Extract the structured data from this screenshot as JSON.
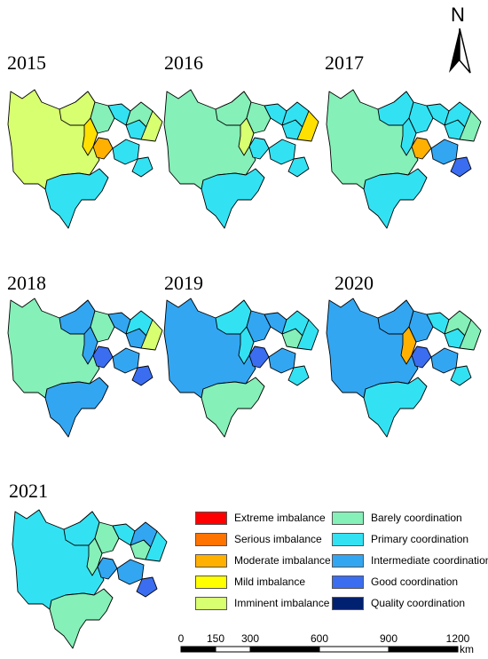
{
  "panels": [
    {
      "year": "2015",
      "fills": [
        "#d8ff70",
        "#d8ff70",
        "#ffe000",
        "#ffb000",
        "#85f0b8",
        "#33e2f2",
        "#33e2f2",
        "#85f0b8",
        "#33e2f2",
        "#d8ff70",
        "#33e2f2"
      ]
    },
    {
      "year": "2016",
      "fills": [
        "#85f0b8",
        "#85f0b8",
        "#d8ff70",
        "#33e2f2",
        "#85f0b8",
        "#33e2f2",
        "#33e2f2",
        "#33e2f2",
        "#33e2f2",
        "#ffe000",
        "#33e2f2"
      ]
    },
    {
      "year": "2017",
      "fills": [
        "#85f0b8",
        "#33e2f2",
        "#33e2f2",
        "#ffb000",
        "#33e2f2",
        "#33e2f2",
        "#33e2f2",
        "#33e2f2",
        "#33a6f2",
        "#85f0b8",
        "#3b6df0"
      ]
    },
    {
      "year": "2018",
      "fills": [
        "#85f0b8",
        "#33a6f2",
        "#33a6f2",
        "#3b6df0",
        "#85f0b8",
        "#33a6f2",
        "#33a6f2",
        "#33e2f2",
        "#33a6f2",
        "#d8ff70",
        "#3b6df0"
      ]
    },
    {
      "year": "2019",
      "fills": [
        "#33a6f2",
        "#33e2f2",
        "#33e2f2",
        "#3b6df0",
        "#33a6f2",
        "#33a6f2",
        "#85f0b8",
        "#33e2f2",
        "#33a6f2",
        "#33e2f2",
        "#33e2f2"
      ]
    },
    {
      "year": "2020",
      "fills": [
        "#33a6f2",
        "#33a6f2",
        "#ffb000",
        "#3b6df0",
        "#33a6f2",
        "#33e2f2",
        "#33e2f2",
        "#85f0b8",
        "#33a6f2",
        "#85f0b8",
        "#33e2f2"
      ]
    },
    {
      "year": "2021",
      "fills": [
        "#33e2f2",
        "#33e2f2",
        "#85f0b8",
        "#33a6f2",
        "#85f0b8",
        "#33e2f2",
        "#85f0b8",
        "#33a6f2",
        "#33a6f2",
        "#33e2f2",
        "#3b6df0"
      ]
    }
  ],
  "legend": [
    {
      "label": "Extreme imbalance",
      "color": "#ff0000"
    },
    {
      "label": "Serious imbalance",
      "color": "#ff7300"
    },
    {
      "label": "Moderate imbalance",
      "color": "#ffb000"
    },
    {
      "label": "Mild imbalance",
      "color": "#ffff00"
    },
    {
      "label": "Imminent imbalance",
      "color": "#d8ff70"
    },
    {
      "label": "Barely coordination",
      "color": "#85f0b8"
    },
    {
      "label": "Primary coordination",
      "color": "#33e2f2"
    },
    {
      "label": "Intermediate coordination",
      "color": "#33a6f2"
    },
    {
      "label": "Good coordination",
      "color": "#3b6df0"
    },
    {
      "label": "Quality coordination",
      "color": "#002070"
    }
  ],
  "scale": {
    "ticks": [
      "0",
      "150",
      "300",
      "600",
      "900",
      "1200"
    ],
    "tick_values": [
      0,
      150,
      300,
      600,
      900,
      1200
    ],
    "max_value": 1200,
    "unit": "km"
  },
  "north_label": "N"
}
